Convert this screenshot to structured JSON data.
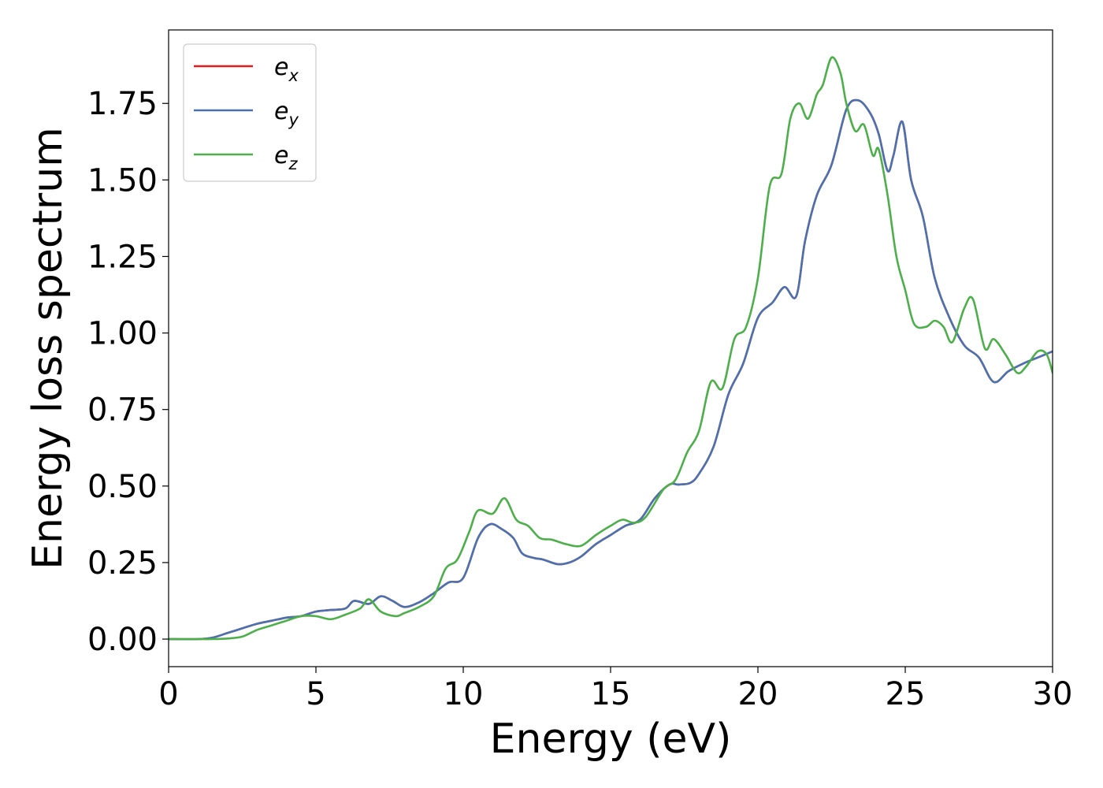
{
  "chart_data": {
    "type": "line",
    "title": "",
    "xlabel": "Energy (eV)",
    "ylabel": "Energy loss spectrum",
    "xlim": [
      0,
      30
    ],
    "ylim": [
      -0.09,
      1.99
    ],
    "xticks": [
      0,
      5,
      10,
      15,
      20,
      25,
      30
    ],
    "xtick_labels": [
      "0",
      "5",
      "10",
      "15",
      "20",
      "25",
      "30"
    ],
    "yticks": [
      0.0,
      0.25,
      0.5,
      0.75,
      1.0,
      1.25,
      1.5,
      1.75
    ],
    "ytick_labels": [
      "0.00",
      "0.25",
      "0.50",
      "0.75",
      "1.00",
      "1.25",
      "1.50",
      "1.75"
    ],
    "grid": false,
    "legend_position": "top-left",
    "series": [
      {
        "name": "e_x",
        "legend_main": "e",
        "legend_sub": "x",
        "color": "#e41a1c",
        "x": [
          0,
          1,
          1.5,
          2,
          2.5,
          3,
          3.5,
          4,
          4.5,
          5,
          5.5,
          6,
          6.3,
          6.8,
          7.2,
          7.6,
          8,
          8.5,
          9,
          9.5,
          10,
          10.5,
          10.9,
          11.3,
          11.7,
          12,
          12.4,
          12.7,
          13.2,
          13.6,
          14,
          14.5,
          15,
          15.5,
          16,
          16.5,
          17,
          17.3,
          17.7,
          18,
          18.5,
          19,
          19.5,
          20,
          20.5,
          20.9,
          21.3,
          21.6,
          22,
          22.5,
          23,
          23.4,
          23.8,
          24.1,
          24.4,
          24.6,
          24.9,
          25.2,
          25.6,
          26,
          26.5,
          27,
          27.5,
          28,
          28.5,
          29,
          29.5,
          30
        ],
        "y": [
          0,
          0,
          0.005,
          0.02,
          0.035,
          0.05,
          0.06,
          0.07,
          0.075,
          0.09,
          0.095,
          0.1,
          0.125,
          0.115,
          0.14,
          0.125,
          0.105,
          0.12,
          0.15,
          0.185,
          0.2,
          0.33,
          0.375,
          0.36,
          0.33,
          0.28,
          0.265,
          0.26,
          0.245,
          0.25,
          0.27,
          0.31,
          0.34,
          0.37,
          0.39,
          0.46,
          0.505,
          0.505,
          0.51,
          0.54,
          0.63,
          0.8,
          0.9,
          1.05,
          1.1,
          1.15,
          1.12,
          1.3,
          1.45,
          1.55,
          1.73,
          1.76,
          1.72,
          1.65,
          1.53,
          1.58,
          1.69,
          1.5,
          1.38,
          1.18,
          1.05,
          0.96,
          0.92,
          0.84,
          0.875,
          0.9,
          0.92,
          0.94
        ]
      },
      {
        "name": "e_y",
        "legend_main": "e",
        "legend_sub": "y",
        "color": "#4a72b0",
        "x": [
          0,
          1,
          1.5,
          2,
          2.5,
          3,
          3.5,
          4,
          4.5,
          5,
          5.5,
          6,
          6.3,
          6.8,
          7.2,
          7.6,
          8,
          8.5,
          9,
          9.5,
          10,
          10.5,
          10.9,
          11.3,
          11.7,
          12,
          12.4,
          12.7,
          13.2,
          13.6,
          14,
          14.5,
          15,
          15.5,
          16,
          16.5,
          17,
          17.3,
          17.7,
          18,
          18.5,
          19,
          19.5,
          20,
          20.5,
          20.9,
          21.3,
          21.6,
          22,
          22.5,
          23,
          23.4,
          23.8,
          24.1,
          24.4,
          24.6,
          24.9,
          25.2,
          25.6,
          26,
          26.5,
          27,
          27.5,
          28,
          28.5,
          29,
          29.5,
          30
        ],
        "y": [
          0,
          0,
          0.005,
          0.02,
          0.035,
          0.05,
          0.06,
          0.07,
          0.075,
          0.09,
          0.095,
          0.1,
          0.125,
          0.115,
          0.14,
          0.125,
          0.105,
          0.12,
          0.15,
          0.185,
          0.2,
          0.33,
          0.375,
          0.36,
          0.33,
          0.28,
          0.265,
          0.26,
          0.245,
          0.25,
          0.27,
          0.31,
          0.34,
          0.37,
          0.39,
          0.46,
          0.505,
          0.505,
          0.51,
          0.54,
          0.63,
          0.8,
          0.9,
          1.05,
          1.1,
          1.15,
          1.12,
          1.3,
          1.45,
          1.55,
          1.73,
          1.76,
          1.72,
          1.65,
          1.53,
          1.58,
          1.69,
          1.5,
          1.38,
          1.18,
          1.05,
          0.96,
          0.92,
          0.84,
          0.875,
          0.9,
          0.92,
          0.94
        ]
      },
      {
        "name": "e_z",
        "legend_main": "e",
        "legend_sub": "z",
        "color": "#4daf4a",
        "x": [
          0,
          1,
          1.5,
          2,
          2.5,
          3,
          3.5,
          4,
          4.5,
          5,
          5.5,
          6,
          6.5,
          6.8,
          7.2,
          7.7,
          8,
          8.5,
          9,
          9.4,
          9.8,
          10.2,
          10.5,
          11,
          11.4,
          11.8,
          12.2,
          12.6,
          13,
          13.5,
          14,
          14.5,
          15,
          15.4,
          15.8,
          16.2,
          16.8,
          17.2,
          17.6,
          18,
          18.4,
          18.8,
          19.2,
          19.6,
          20,
          20.4,
          20.8,
          21.1,
          21.4,
          21.7,
          22,
          22.2,
          22.5,
          22.8,
          23,
          23.3,
          23.6,
          23.9,
          24.1,
          24.4,
          24.7,
          25,
          25.3,
          25.7,
          26,
          26.3,
          26.6,
          27,
          27.3,
          27.7,
          28,
          28.4,
          28.8,
          29.1,
          29.5,
          29.8,
          30
        ],
        "y": [
          0,
          0,
          0,
          0.002,
          0.008,
          0.03,
          0.045,
          0.06,
          0.075,
          0.075,
          0.065,
          0.08,
          0.1,
          0.13,
          0.09,
          0.075,
          0.085,
          0.105,
          0.14,
          0.23,
          0.26,
          0.35,
          0.42,
          0.41,
          0.46,
          0.39,
          0.37,
          0.33,
          0.325,
          0.31,
          0.305,
          0.34,
          0.37,
          0.39,
          0.38,
          0.4,
          0.49,
          0.52,
          0.61,
          0.68,
          0.84,
          0.82,
          0.98,
          1.02,
          1.18,
          1.48,
          1.52,
          1.7,
          1.75,
          1.7,
          1.78,
          1.81,
          1.9,
          1.85,
          1.75,
          1.66,
          1.68,
          1.58,
          1.6,
          1.45,
          1.25,
          1.14,
          1.03,
          1.02,
          1.04,
          1.02,
          0.97,
          1.08,
          1.11,
          0.95,
          0.98,
          0.93,
          0.87,
          0.89,
          0.94,
          0.93,
          0.87
        ]
      }
    ]
  }
}
